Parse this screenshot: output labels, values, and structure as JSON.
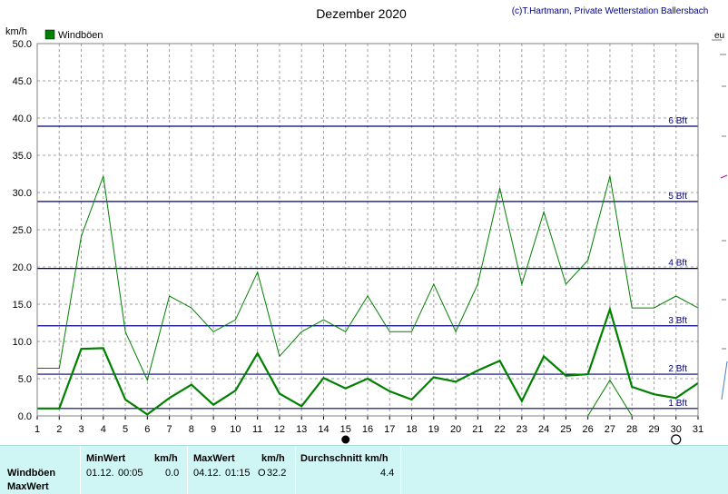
{
  "chart_data": {
    "type": "line",
    "title": "Dezember 2020",
    "credit": "(c)T.Hartmann, Private Wetterstation Ballersbach",
    "ylabel": "km/h",
    "xlabel": "",
    "ylim": [
      0,
      50
    ],
    "xlim": [
      1,
      31
    ],
    "yticks": [
      "0.0",
      "5.0",
      "10.0",
      "15.0",
      "20.0",
      "25.0",
      "30.0",
      "35.0",
      "40.0",
      "45.0",
      "50.0"
    ],
    "xticks": [
      "1",
      "2",
      "3",
      "4",
      "5",
      "6",
      "7",
      "8",
      "9",
      "10",
      "11",
      "12",
      "13",
      "14",
      "15",
      "16",
      "17",
      "18",
      "19",
      "20",
      "21",
      "22",
      "23",
      "24",
      "25",
      "26",
      "27",
      "28",
      "29",
      "30",
      "31"
    ],
    "grid": true,
    "legend": {
      "position": "top-left",
      "entries": [
        "Windböen"
      ],
      "color": "#008000"
    },
    "beaufort": {
      "color": "#000080",
      "levels": [
        {
          "label": "1 Bft",
          "value": 1.0
        },
        {
          "label": "2 Bft",
          "value": 5.6
        },
        {
          "label": "3 Bft",
          "value": 12.1
        },
        {
          "label": "4 Bft",
          "value": 19.8
        },
        {
          "label": "5 Bft",
          "value": 28.8
        },
        {
          "label": "6 Bft",
          "value": 38.9
        }
      ]
    },
    "series": [
      {
        "name": "Windböen",
        "style": "thick",
        "color": "#008000",
        "x": [
          1,
          2,
          3,
          4,
          5,
          6,
          7,
          8,
          9,
          10,
          11,
          12,
          13,
          14,
          15,
          16,
          17,
          18,
          19,
          20,
          21,
          22,
          23,
          24,
          25,
          26,
          27,
          28,
          29,
          30,
          31
        ],
        "values": [
          1.0,
          1.0,
          9.0,
          9.1,
          2.2,
          0.2,
          2.4,
          4.2,
          1.5,
          3.4,
          8.4,
          3.0,
          1.3,
          5.1,
          3.7,
          5.0,
          3.3,
          2.2,
          5.2,
          4.6,
          6.1,
          7.4,
          2.0,
          8.0,
          5.4,
          5.6,
          14.3,
          3.9,
          2.9,
          2.4,
          4.4
        ]
      },
      {
        "name": "MaxWert",
        "style": "thin",
        "color": "#008000",
        "x": [
          1,
          2,
          3,
          4,
          5,
          6,
          7,
          8,
          9,
          10,
          11,
          12,
          13,
          14,
          15,
          16,
          17,
          18,
          19,
          20,
          21,
          22,
          23,
          24,
          25,
          26,
          27,
          28,
          29,
          30,
          31
        ],
        "values": [
          6.4,
          6.4,
          24.1,
          32.2,
          11.3,
          4.8,
          16.1,
          14.5,
          11.3,
          12.9,
          19.3,
          8.0,
          11.3,
          12.9,
          11.3,
          16.1,
          11.3,
          11.3,
          17.7,
          11.3,
          17.7,
          30.6,
          17.7,
          27.4,
          17.7,
          20.9,
          32.2,
          14.5,
          14.5,
          16.1,
          14.5
        ]
      },
      {
        "name": "MinWert",
        "style": "thin",
        "color": "#008000",
        "x": [
          26,
          27,
          28
        ],
        "values": [
          0.0,
          4.8,
          0.0
        ]
      }
    ],
    "markers": [
      {
        "label": "new-moon",
        "x": 15
      },
      {
        "label": "full-moon",
        "x": 30
      }
    ]
  },
  "stats": {
    "row_labels": [
      "Windböen",
      "MaxWert"
    ],
    "min_header": "MinWert",
    "min_unit": "km/h",
    "min_date": "01.12.",
    "min_time": "00:05",
    "min_value": "0.0",
    "max_header": "MaxWert",
    "max_unit": "km/h",
    "max_date": "04.12.",
    "max_time": "01:15",
    "max_flag": "O",
    "max_value": "32.2",
    "avg_header": "Durchschnitt km/h",
    "avg_value": "4.4"
  },
  "right_fragment": "eu"
}
